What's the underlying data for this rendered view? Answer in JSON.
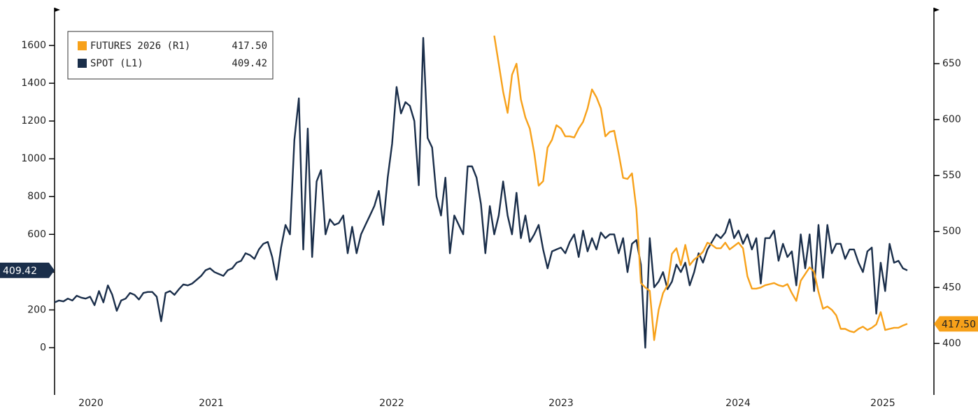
{
  "chart_data": {
    "type": "line",
    "xticks": [
      "2020",
      "2021",
      "2022",
      "2023",
      "2024",
      "2025"
    ],
    "ylim": [
      -250,
      1800
    ],
    "yticks": [
      0,
      200,
      400,
      600,
      800,
      1000,
      1200,
      1400,
      1600
    ],
    "y2lim": [
      354,
      700
    ],
    "y2ticks": [
      400,
      450,
      500,
      550,
      600,
      650
    ],
    "legend": "upper left",
    "series": [
      {
        "name": "FUTURES 2026 (R1)",
        "color": "#f7a11a",
        "axis": "y2",
        "last_label": "417.50",
        "values": [
          null,
          null,
          null,
          null,
          null,
          null,
          null,
          null,
          null,
          null,
          null,
          null,
          null,
          null,
          null,
          null,
          null,
          null,
          null,
          null,
          null,
          null,
          null,
          null,
          null,
          null,
          null,
          null,
          null,
          null,
          null,
          null,
          null,
          null,
          null,
          null,
          null,
          null,
          null,
          null,
          null,
          null,
          null,
          null,
          null,
          null,
          null,
          null,
          null,
          null,
          null,
          null,
          null,
          null,
          null,
          null,
          null,
          null,
          null,
          null,
          null,
          null,
          null,
          null,
          null,
          null,
          null,
          null,
          null,
          null,
          null,
          null,
          null,
          null,
          null,
          null,
          null,
          null,
          null,
          null,
          null,
          null,
          null,
          null,
          null,
          null,
          null,
          null,
          null,
          null,
          null,
          null,
          null,
          null,
          null,
          null,
          null,
          null,
          null,
          675,
          650,
          625,
          606,
          640,
          650,
          618,
          602,
          592,
          570,
          541,
          545,
          575,
          582,
          595,
          592,
          585,
          585,
          584,
          592,
          598,
          610,
          627,
          620,
          610,
          585,
          589,
          590,
          570,
          548,
          547,
          552,
          520,
          454,
          450,
          447,
          403,
          430,
          445,
          452,
          480,
          485,
          470,
          488,
          470,
          475,
          478,
          482,
          490,
          488,
          485,
          485,
          490,
          484,
          487,
          490,
          485,
          460,
          449,
          449,
          450,
          452,
          453,
          454,
          452,
          451,
          453,
          445,
          438,
          456,
          462,
          468,
          464,
          446,
          431,
          433,
          430,
          425,
          413,
          413,
          411,
          410,
          413,
          415,
          412,
          414,
          417,
          428,
          412,
          413,
          414,
          414,
          416,
          417.5
        ]
      },
      {
        "name": "SPOT (L1)",
        "color": "#1a2e4a",
        "axis": "y",
        "last_label": "409.42",
        "values": [
          240,
          250,
          245,
          260,
          250,
          275,
          265,
          260,
          270,
          225,
          300,
          240,
          330,
          280,
          195,
          250,
          260,
          290,
          280,
          255,
          290,
          295,
          295,
          270,
          140,
          290,
          300,
          280,
          310,
          335,
          330,
          340,
          360,
          380,
          410,
          420,
          400,
          390,
          380,
          410,
          420,
          450,
          460,
          500,
          490,
          470,
          520,
          550,
          560,
          480,
          360,
          530,
          650,
          600,
          1100,
          1320,
          520,
          1160,
          480,
          880,
          940,
          600,
          680,
          650,
          660,
          700,
          500,
          640,
          500,
          600,
          650,
          700,
          750,
          830,
          650,
          900,
          1080,
          1380,
          1240,
          1300,
          1280,
          1200,
          860,
          1640,
          1110,
          1060,
          800,
          700,
          900,
          500,
          700,
          650,
          600,
          960,
          960,
          900,
          760,
          500,
          750,
          600,
          700,
          880,
          700,
          600,
          820,
          580,
          700,
          560,
          600,
          650,
          520,
          420,
          510,
          520,
          530,
          500,
          560,
          600,
          480,
          620,
          510,
          580,
          520,
          610,
          580,
          600,
          600,
          500,
          580,
          400,
          550,
          570,
          440,
          0,
          580,
          320,
          350,
          400,
          310,
          350,
          440,
          400,
          450,
          330,
          400,
          500,
          450,
          520,
          560,
          600,
          580,
          610,
          680,
          580,
          620,
          550,
          600,
          520,
          580,
          340,
          580,
          580,
          620,
          460,
          550,
          480,
          510,
          330,
          600,
          420,
          600,
          300,
          650,
          370,
          650,
          500,
          550,
          550,
          470,
          520,
          520,
          450,
          400,
          510,
          530,
          180,
          450,
          300,
          550,
          450,
          460,
          420,
          409.42
        ]
      }
    ]
  }
}
